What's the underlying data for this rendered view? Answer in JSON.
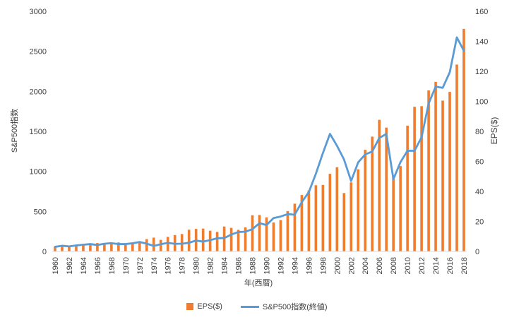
{
  "colors": {
    "bar": "#ED7D31",
    "line": "#5B9BD5",
    "axis_text": "#404040",
    "grid": "#D9D9D9"
  },
  "chart_data": {
    "type": "bar+line",
    "title": "",
    "xlabel": "年(西暦)",
    "ylabel_left": "S&P500指数",
    "ylabel_right": "EPS($)",
    "ylim_left": [
      0,
      3000
    ],
    "ylim_right": [
      0,
      160
    ],
    "yticks_left": [
      "0",
      "500",
      "1000",
      "1500",
      "2000",
      "2500",
      "3000"
    ],
    "yticks_right": [
      "0",
      "20",
      "40",
      "60",
      "80",
      "100",
      "120",
      "140",
      "160"
    ],
    "xticks": [
      "1960",
      "1962",
      "1964",
      "1966",
      "1968",
      "1970",
      "1972",
      "1974",
      "1976",
      "1978",
      "1980",
      "1982",
      "1984",
      "1986",
      "1988",
      "1990",
      "1992",
      "1994",
      "1996",
      "1998",
      "2000",
      "2002",
      "2004",
      "2006",
      "2008",
      "2010",
      "2012",
      "2014",
      "2016",
      "2018"
    ],
    "grid": false,
    "legend_position": "bottom",
    "x": [
      1960,
      1961,
      1962,
      1963,
      1964,
      1965,
      1966,
      1967,
      1968,
      1969,
      1970,
      1971,
      1972,
      1973,
      1974,
      1975,
      1976,
      1977,
      1978,
      1979,
      1980,
      1981,
      1982,
      1983,
      1984,
      1985,
      1986,
      1987,
      1988,
      1989,
      1990,
      1991,
      1992,
      1993,
      1994,
      1995,
      1996,
      1997,
      1998,
      1999,
      2000,
      2001,
      2002,
      2003,
      2004,
      2005,
      2006,
      2007,
      2008,
      2009,
      2010,
      2011,
      2012,
      2013,
      2014,
      2015,
      2016,
      2017,
      2018
    ],
    "series": [
      {
        "name": "EPS($)",
        "type": "bar",
        "axis": "right",
        "values": [
          3.1,
          3.4,
          3.8,
          4.1,
          4.6,
          5.2,
          5.6,
          5.5,
          5.8,
          6.0,
          5.5,
          5.7,
          6.4,
          8.2,
          9.2,
          7.7,
          9.7,
          10.9,
          11.6,
          14.5,
          15.0,
          15.2,
          13.8,
          13.0,
          16.6,
          15.7,
          14.4,
          16.0,
          24.1,
          24.3,
          22.7,
          19.3,
          20.9,
          26.9,
          31.8,
          37.6,
          40.6,
          44.1,
          44.3,
          51.7,
          56.1,
          38.9,
          46.0,
          54.7,
          67.7,
          76.5,
          87.7,
          82.5,
          49.5,
          56.9,
          83.8,
          96.4,
          96.8,
          107.3,
          113.0,
          100.5,
          106.3,
          124.5,
          148.3
        ]
      },
      {
        "name": "S&P500指数(終値)",
        "type": "line",
        "axis": "left",
        "values": [
          58,
          71,
          63,
          75,
          84,
          92,
          80,
          96,
          103,
          92,
          92,
          102,
          118,
          97,
          69,
          90,
          107,
          95,
          96,
          108,
          136,
          123,
          141,
          165,
          167,
          211,
          242,
          247,
          278,
          353,
          330,
          417,
          436,
          466,
          459,
          616,
          741,
          970,
          1229,
          1469,
          1320,
          1148,
          880,
          1112,
          1212,
          1248,
          1418,
          1468,
          903,
          1115,
          1258,
          1258,
          1426,
          1848,
          2059,
          2044,
          2239,
          2674,
          2507
        ]
      }
    ]
  }
}
